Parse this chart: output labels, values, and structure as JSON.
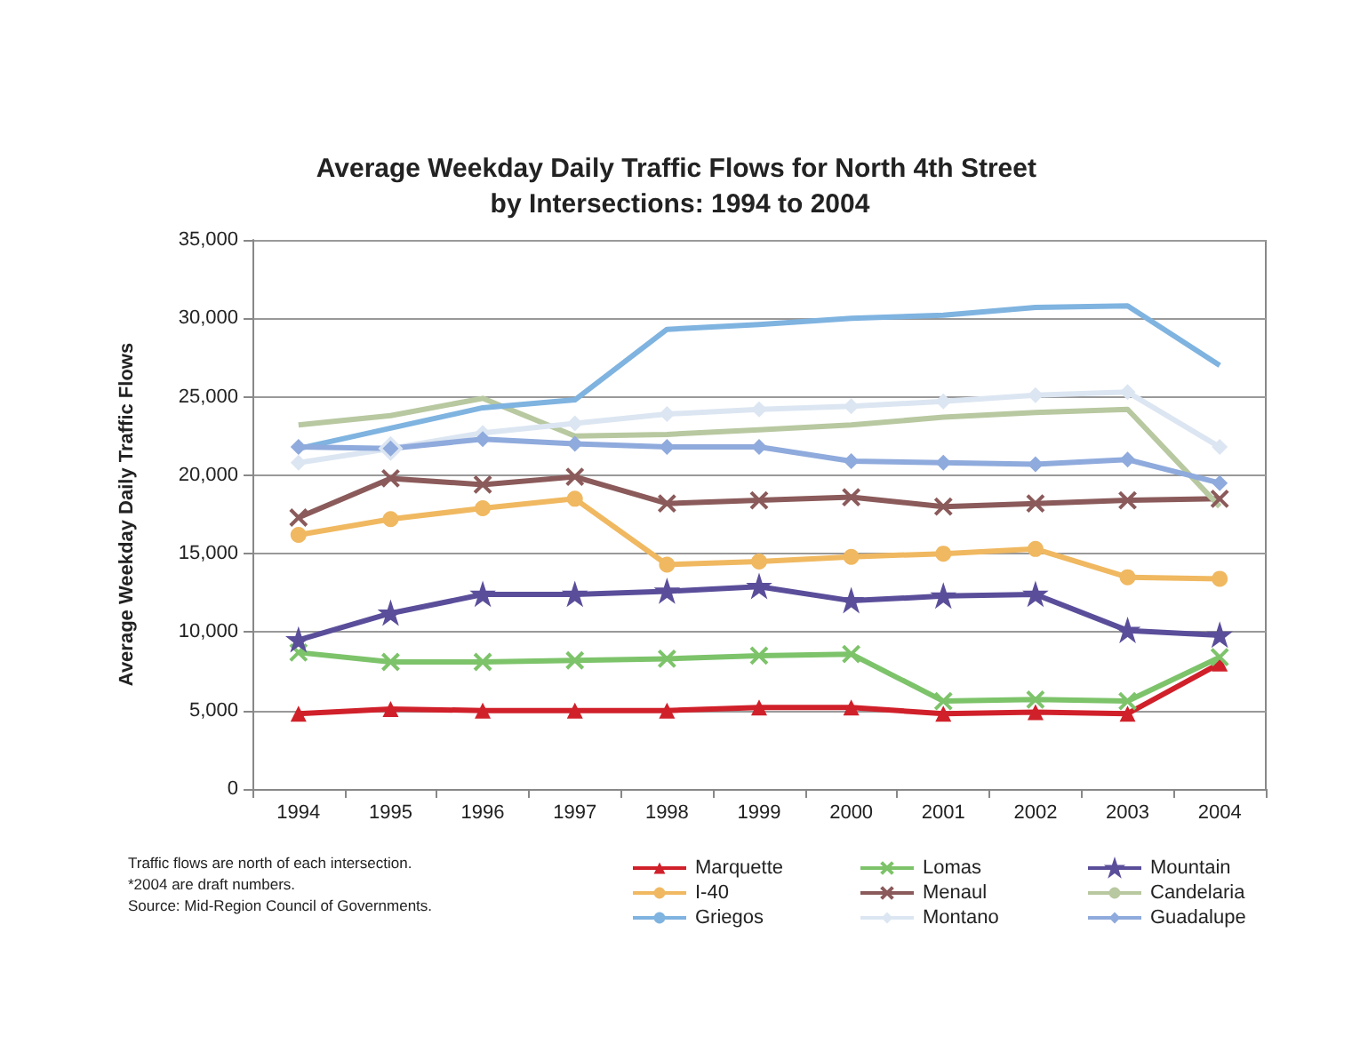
{
  "chart_data": {
    "type": "line",
    "title": "Average Weekday Daily Traffic Flows for North 4th Street by Intersections: 1994 to 2004",
    "ylabel": "Average Weekday Daily Traffic Flows",
    "categories": [
      "1994",
      "1995",
      "1996",
      "1997",
      "1998",
      "1999",
      "2000",
      "2001",
      "2002",
      "2003",
      "2004"
    ],
    "ylim": [
      0,
      35000
    ],
    "yticks": [
      {
        "value": 0,
        "label": "0"
      },
      {
        "value": 5000,
        "label": "5,000"
      },
      {
        "value": 10000,
        "label": "10,000"
      },
      {
        "value": 15000,
        "label": "15,000"
      },
      {
        "value": 20000,
        "label": "20,000"
      },
      {
        "value": 25000,
        "label": "25,000"
      },
      {
        "value": 30000,
        "label": "30,000"
      },
      {
        "value": 35000,
        "label": "35,000"
      }
    ],
    "grid": "y",
    "legend": "bottom",
    "annotations": [
      "Traffic flows are north of each intersection.",
      "*2004 are draft numbers.",
      "Source: Mid-Region Council of Governments."
    ],
    "series": [
      {
        "name": "Marquette",
        "color": "#d0202a",
        "marker": "triangle",
        "values": [
          4800,
          5100,
          5000,
          5000,
          5000,
          5200,
          5200,
          4800,
          4900,
          4800,
          8000
        ]
      },
      {
        "name": "Lomas",
        "color": "#7dc36a",
        "marker": "cross",
        "values": [
          8700,
          8100,
          8100,
          8200,
          8300,
          8500,
          8600,
          5600,
          5700,
          5600,
          8400
        ]
      },
      {
        "name": "Mountain",
        "color": "#5a4e9a",
        "marker": "star",
        "values": [
          9500,
          11200,
          12400,
          12400,
          12600,
          12900,
          12000,
          12300,
          12400,
          10100,
          9800
        ]
      },
      {
        "name": "I-40",
        "color": "#f0b860",
        "marker": "circle",
        "values": [
          16200,
          17200,
          17900,
          18500,
          14300,
          14500,
          14800,
          15000,
          15300,
          13500,
          13400
        ]
      },
      {
        "name": "Menaul",
        "color": "#8b5a5a",
        "marker": "cross",
        "values": [
          17300,
          19800,
          19400,
          19900,
          18200,
          18400,
          18600,
          18000,
          18200,
          18400,
          18500
        ]
      },
      {
        "name": "Candelaria",
        "color": "#b8c8a0",
        "marker": "none",
        "values": [
          23200,
          23800,
          24900,
          22500,
          22600,
          22900,
          23200,
          23700,
          24000,
          24200,
          18000
        ]
      },
      {
        "name": "Griegos",
        "color": "#7fb3e0",
        "marker": "none",
        "values": [
          21700,
          23000,
          24300,
          24800,
          29300,
          29600,
          30000,
          30200,
          30700,
          30800,
          27000
        ]
      },
      {
        "name": "Montano",
        "color": "#dce6f2",
        "marker": "diamond",
        "values": [
          20800,
          21700,
          22700,
          23300,
          23900,
          24200,
          24400,
          24700,
          25100,
          25300,
          21800
        ]
      },
      {
        "name": "Guadalupe",
        "color": "#8faadc",
        "marker": "diamond",
        "values": [
          21800,
          21700,
          22300,
          22000,
          21800,
          21800,
          20900,
          20800,
          20700,
          21000,
          19500
        ]
      }
    ]
  }
}
